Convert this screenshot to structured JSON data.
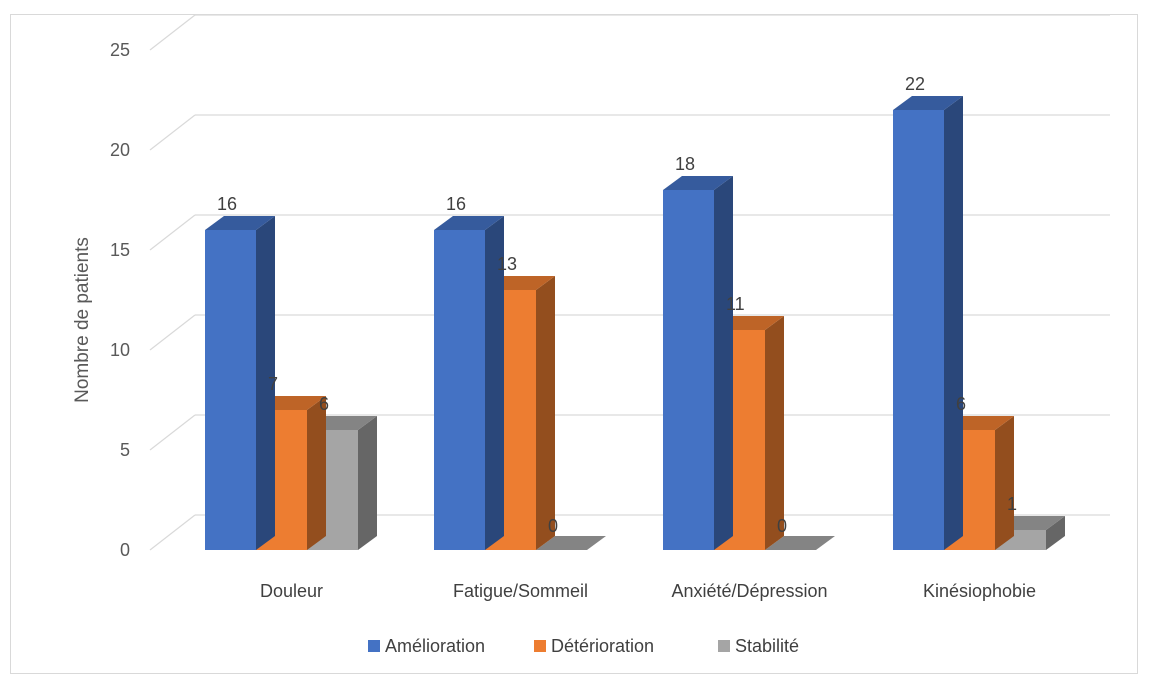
{
  "chart_data": {
    "type": "bar",
    "categories": [
      "Douleur",
      "Fatigue/Sommeil",
      "Anxiété/Dépression",
      "Kinésiophobie"
    ],
    "series": [
      {
        "name": "Amélioration",
        "values": [
          16,
          16,
          18,
          22
        ],
        "color": "#4472C4"
      },
      {
        "name": "Détérioration",
        "values": [
          7,
          13,
          11,
          6
        ],
        "color": "#ED7D31"
      },
      {
        "name": "Stabilité",
        "values": [
          6,
          0,
          0,
          1
        ],
        "color": "#A5A5A5"
      }
    ],
    "ylabel": "Nombre de patients",
    "ylim": [
      0,
      25
    ],
    "yticks": [
      0,
      5,
      10,
      15,
      20,
      25
    ],
    "grid": true,
    "legend": "bottom",
    "data_labels": true,
    "style": "3d-column"
  }
}
